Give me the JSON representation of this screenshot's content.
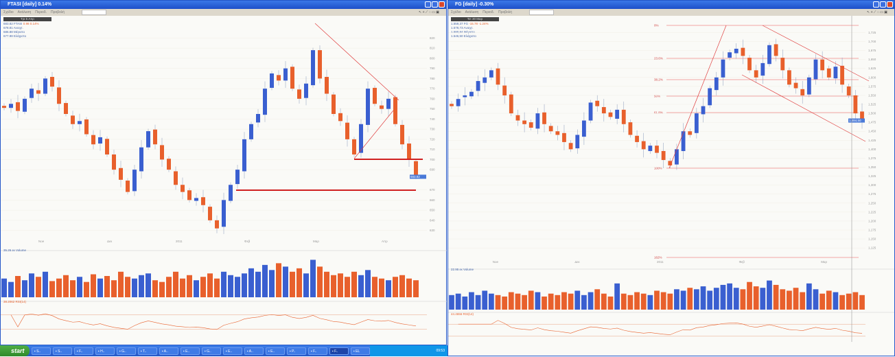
{
  "left": {
    "title": "FTASI [daily] 0.14%",
    "menu": [
      "Σχέδιο",
      "Ανάλυση",
      "Περιοδ.",
      "Προβολή"
    ],
    "date_label": "Τρι 5 Απρ",
    "legend": {
      "price": "683.82 FTASI",
      "change": "0.98 0.14%",
      "lines": [
        "678.81 Ανοιχτ.",
        "686.88 Μέγιστο",
        "677.98 Ελάχιστο"
      ]
    },
    "volume_label": "35.26 εκ Volume",
    "rsi_label": "38.2062 RSI(14)",
    "current_price": "683.82",
    "chart_data": {
      "type": "candlestick",
      "ylim": [
        625,
        825
      ],
      "yticks": [
        820,
        810,
        800,
        790,
        780,
        770,
        760,
        750,
        740,
        730,
        720,
        710,
        700,
        690,
        670,
        660,
        650,
        640,
        630
      ],
      "xticks": [
        "Noe",
        "Δεκ",
        "2011",
        "Φεβ",
        "Μαρ",
        "Απρ"
      ],
      "closes": [
        751,
        755,
        748,
        760,
        770,
        765,
        780,
        772,
        755,
        745,
        735,
        738,
        725,
        715,
        722,
        705,
        690,
        680,
        668,
        690,
        712,
        728,
        715,
        700,
        690,
        675,
        668,
        660,
        662,
        655,
        640,
        632,
        660,
        675,
        690,
        720,
        735,
        745,
        770,
        785,
        778,
        790,
        770,
        760,
        775,
        808,
        780,
        765,
        745,
        738,
        720,
        705,
        735,
        770,
        755,
        750,
        760,
        735,
        715,
        700,
        683
      ],
      "volume": [
        22,
        18,
        25,
        20,
        28,
        24,
        30,
        19,
        22,
        26,
        20,
        24,
        18,
        27,
        22,
        25,
        20,
        30,
        24,
        22,
        26,
        28,
        20,
        18,
        24,
        30,
        22,
        26,
        20,
        24,
        28,
        22,
        30,
        26,
        24,
        28,
        34,
        30,
        38,
        32,
        40,
        36,
        30,
        34,
        28,
        44,
        36,
        30,
        26,
        28,
        24,
        30,
        26,
        32,
        24,
        22,
        20,
        24,
        26,
        22,
        20
      ],
      "rsi_levels": [
        70,
        30
      ]
    }
  },
  "right": {
    "title": "FG [daily] -0.30%",
    "menu": [
      "Σχέδιο",
      "Ανάλυση",
      "Περιοδ.",
      "Προβολή"
    ],
    "date_label": "Τετ 30 Μαρ",
    "legend": {
      "price": "1.559,37 FG",
      "change": "-15.78 -1.24%",
      "lines": [
        "1.578,73 Ανοιχτ.",
        "1.580,84 Μέγιστο",
        "1.546,50 Ελάχιστο"
      ]
    },
    "volume_label": "22.95 εκ Volume",
    "rsi_label": "44.4656 RSI(14)",
    "current_price": "1.484,50",
    "cursor_date": "Τετ 30 Μαρ",
    "fib_levels": [
      "0%",
      "23.6%",
      "38.2%",
      "50%",
      "61.8%",
      "100%",
      "162%"
    ],
    "chart_data": {
      "type": "candlestick",
      "ylim": [
        1.11,
        1.745
      ],
      "yticks": [
        1.725,
        1.7,
        1.675,
        1.65,
        1.625,
        1.6,
        1.575,
        1.55,
        1.525,
        1.5,
        1.475,
        1.45,
        1.425,
        1.4,
        1.375,
        1.35,
        1.325,
        1.3,
        1.275,
        1.25,
        1.225,
        1.2,
        1.175,
        1.15,
        1.125
      ],
      "xticks": [
        "Noe",
        "Δεκ",
        "2011",
        "Φεβ",
        "Μαρ"
      ],
      "closes": [
        1.52,
        1.54,
        1.55,
        1.56,
        1.59,
        1.6,
        1.62,
        1.58,
        1.55,
        1.5,
        1.48,
        1.47,
        1.46,
        1.5,
        1.47,
        1.45,
        1.44,
        1.42,
        1.4,
        1.44,
        1.48,
        1.53,
        1.52,
        1.5,
        1.49,
        1.51,
        1.47,
        1.44,
        1.42,
        1.4,
        1.41,
        1.39,
        1.37,
        1.355,
        1.4,
        1.45,
        1.44,
        1.5,
        1.52,
        1.57,
        1.6,
        1.65,
        1.67,
        1.68,
        1.66,
        1.62,
        1.6,
        1.64,
        1.69,
        1.66,
        1.62,
        1.58,
        1.57,
        1.55,
        1.6,
        1.65,
        1.62,
        1.6,
        1.63,
        1.58,
        1.55,
        1.5,
        1.48
      ],
      "volume": [
        20,
        22,
        18,
        24,
        20,
        26,
        22,
        20,
        18,
        24,
        22,
        20,
        26,
        24,
        18,
        22,
        20,
        24,
        22,
        26,
        20,
        24,
        28,
        22,
        18,
        36,
        22,
        20,
        24,
        22,
        20,
        26,
        24,
        22,
        28,
        26,
        30,
        28,
        32,
        26,
        30,
        34,
        36,
        30,
        28,
        38,
        32,
        30,
        40,
        34,
        28,
        26,
        30,
        24,
        36,
        28,
        22,
        26,
        24,
        20,
        22,
        24,
        20
      ],
      "rsi_levels": [
        70,
        30
      ]
    }
  },
  "taskbar": {
    "start": "start",
    "items": [
      "S..",
      "S..",
      "F..",
      "H..",
      "G..",
      "T..",
      "A..",
      "E..",
      "G..",
      "E..",
      "A..",
      "E..",
      "P..",
      "F..",
      "F..",
      "EL"
    ],
    "clock": "09:53"
  },
  "colors": {
    "up": "#3a5fd0",
    "down": "#e8602c",
    "line": "#e04040"
  }
}
